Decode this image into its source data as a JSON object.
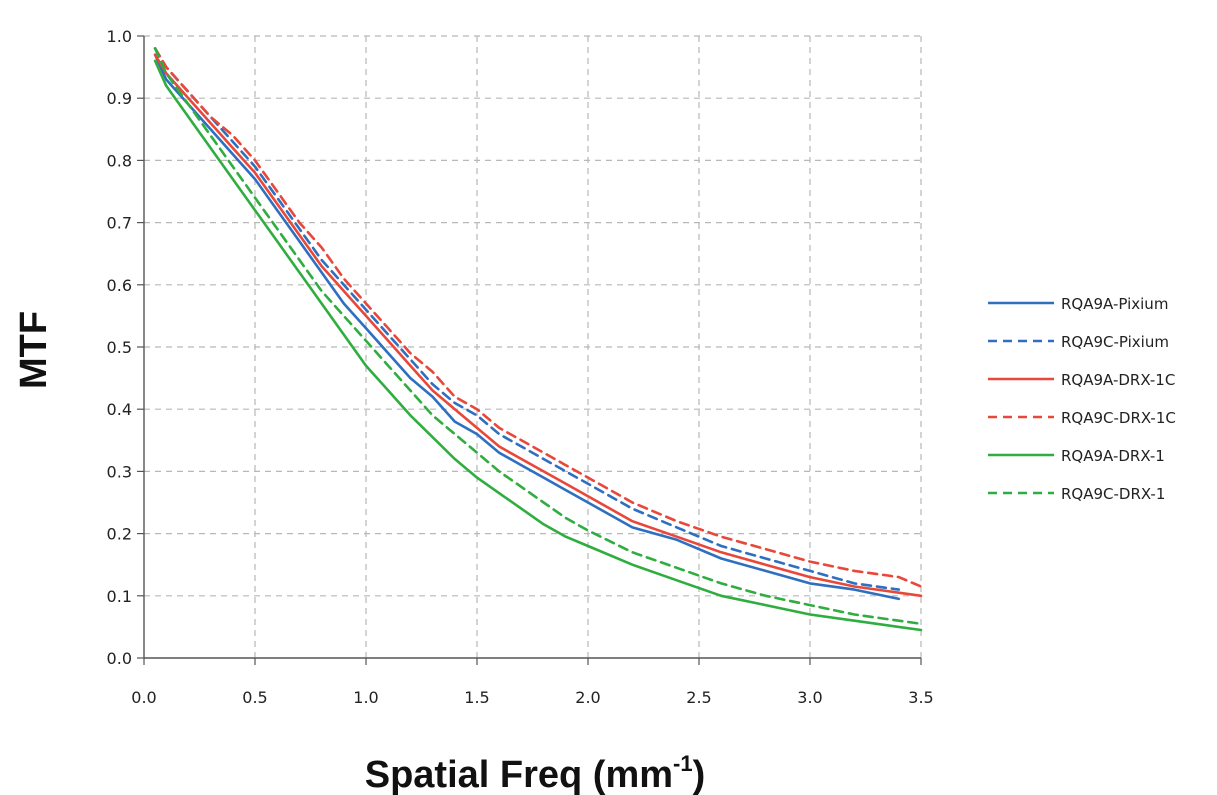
{
  "chart_data": {
    "type": "line",
    "title": "",
    "xlabel": "Spatial Freq (mm",
    "xlabel_sup": "-1",
    "xlabel_close": ")",
    "ylabel": "MTF",
    "xlim": [
      0.0,
      3.5
    ],
    "ylim": [
      0.0,
      1.0
    ],
    "x_ticks": [
      "0.0",
      "0.5",
      "1.0",
      "1.5",
      "2.0",
      "2.5",
      "3.0",
      "3.5"
    ],
    "y_ticks": [
      "0.0",
      "0.1",
      "0.2",
      "0.3",
      "0.4",
      "0.5",
      "0.6",
      "0.7",
      "0.8",
      "0.9",
      "1.0"
    ],
    "grid": true,
    "legend_position": "right",
    "series": [
      {
        "name": "RQA9A-Pixium",
        "color": "#2e6fc0",
        "dashed": false,
        "x": [
          0.05,
          0.1,
          0.2,
          0.3,
          0.4,
          0.5,
          0.6,
          0.7,
          0.8,
          0.9,
          1.0,
          1.1,
          1.2,
          1.3,
          1.4,
          1.5,
          1.6,
          1.7,
          1.8,
          1.9,
          2.0,
          2.2,
          2.4,
          2.6,
          2.8,
          3.0,
          3.2,
          3.4
        ],
        "y": [
          0.97,
          0.93,
          0.89,
          0.85,
          0.81,
          0.77,
          0.72,
          0.67,
          0.62,
          0.57,
          0.53,
          0.49,
          0.45,
          0.42,
          0.38,
          0.36,
          0.33,
          0.31,
          0.29,
          0.27,
          0.25,
          0.21,
          0.19,
          0.16,
          0.14,
          0.12,
          0.11,
          0.095
        ]
      },
      {
        "name": "RQA9C-Pixium",
        "color": "#2e6fc0",
        "dashed": true,
        "x": [
          0.05,
          0.1,
          0.2,
          0.3,
          0.4,
          0.5,
          0.6,
          0.7,
          0.8,
          0.9,
          1.0,
          1.1,
          1.2,
          1.3,
          1.4,
          1.5,
          1.6,
          1.7,
          1.8,
          1.9,
          2.0,
          2.2,
          2.4,
          2.6,
          2.8,
          3.0,
          3.2,
          3.4
        ],
        "y": [
          0.98,
          0.95,
          0.91,
          0.87,
          0.83,
          0.79,
          0.74,
          0.69,
          0.64,
          0.6,
          0.56,
          0.52,
          0.48,
          0.44,
          0.41,
          0.39,
          0.36,
          0.34,
          0.32,
          0.3,
          0.28,
          0.24,
          0.21,
          0.18,
          0.16,
          0.14,
          0.12,
          0.11
        ]
      },
      {
        "name": "RQA9A-DRX-1C",
        "color": "#e8483a",
        "dashed": false,
        "x": [
          0.05,
          0.1,
          0.2,
          0.3,
          0.4,
          0.5,
          0.6,
          0.7,
          0.8,
          0.9,
          1.0,
          1.1,
          1.2,
          1.3,
          1.4,
          1.5,
          1.6,
          1.7,
          1.8,
          1.9,
          2.0,
          2.2,
          2.4,
          2.6,
          2.8,
          3.0,
          3.2,
          3.4,
          3.5
        ],
        "y": [
          0.97,
          0.94,
          0.9,
          0.86,
          0.82,
          0.78,
          0.73,
          0.68,
          0.63,
          0.59,
          0.55,
          0.51,
          0.47,
          0.43,
          0.4,
          0.37,
          0.34,
          0.32,
          0.3,
          0.28,
          0.26,
          0.22,
          0.195,
          0.17,
          0.15,
          0.13,
          0.115,
          0.105,
          0.1
        ]
      },
      {
        "name": "RQA9C-DRX-1C",
        "color": "#e8483a",
        "dashed": true,
        "x": [
          0.05,
          0.1,
          0.2,
          0.3,
          0.4,
          0.5,
          0.6,
          0.7,
          0.8,
          0.9,
          1.0,
          1.1,
          1.2,
          1.3,
          1.4,
          1.5,
          1.6,
          1.7,
          1.8,
          1.9,
          2.0,
          2.2,
          2.4,
          2.6,
          2.8,
          3.0,
          3.2,
          3.4,
          3.5
        ],
        "y": [
          0.98,
          0.95,
          0.91,
          0.87,
          0.84,
          0.8,
          0.75,
          0.7,
          0.66,
          0.61,
          0.57,
          0.53,
          0.49,
          0.46,
          0.42,
          0.4,
          0.37,
          0.35,
          0.33,
          0.31,
          0.29,
          0.25,
          0.22,
          0.195,
          0.175,
          0.155,
          0.14,
          0.13,
          0.115
        ]
      },
      {
        "name": "RQA9A-DRX-1",
        "color": "#2fae3f",
        "dashed": false,
        "x": [
          0.05,
          0.1,
          0.2,
          0.3,
          0.4,
          0.5,
          0.6,
          0.7,
          0.8,
          0.9,
          1.0,
          1.1,
          1.2,
          1.3,
          1.4,
          1.5,
          1.6,
          1.7,
          1.8,
          1.9,
          2.0,
          2.2,
          2.4,
          2.6,
          2.8,
          3.0,
          3.2,
          3.4,
          3.5
        ],
        "y": [
          0.96,
          0.92,
          0.87,
          0.82,
          0.77,
          0.72,
          0.67,
          0.62,
          0.57,
          0.52,
          0.47,
          0.43,
          0.39,
          0.355,
          0.32,
          0.29,
          0.265,
          0.24,
          0.215,
          0.195,
          0.18,
          0.15,
          0.125,
          0.1,
          0.085,
          0.07,
          0.06,
          0.05,
          0.045
        ]
      },
      {
        "name": "RQA9C-DRX-1",
        "color": "#2fae3f",
        "dashed": true,
        "x": [
          0.05,
          0.1,
          0.2,
          0.3,
          0.4,
          0.5,
          0.6,
          0.7,
          0.8,
          0.9,
          1.0,
          1.1,
          1.2,
          1.3,
          1.4,
          1.5,
          1.6,
          1.7,
          1.8,
          1.9,
          2.0,
          2.2,
          2.4,
          2.6,
          2.8,
          3.0,
          3.2,
          3.4,
          3.5
        ],
        "y": [
          0.98,
          0.94,
          0.89,
          0.84,
          0.79,
          0.74,
          0.69,
          0.64,
          0.59,
          0.55,
          0.51,
          0.47,
          0.43,
          0.39,
          0.36,
          0.33,
          0.3,
          0.275,
          0.25,
          0.225,
          0.205,
          0.17,
          0.145,
          0.12,
          0.1,
          0.085,
          0.07,
          0.06,
          0.055
        ]
      }
    ]
  }
}
